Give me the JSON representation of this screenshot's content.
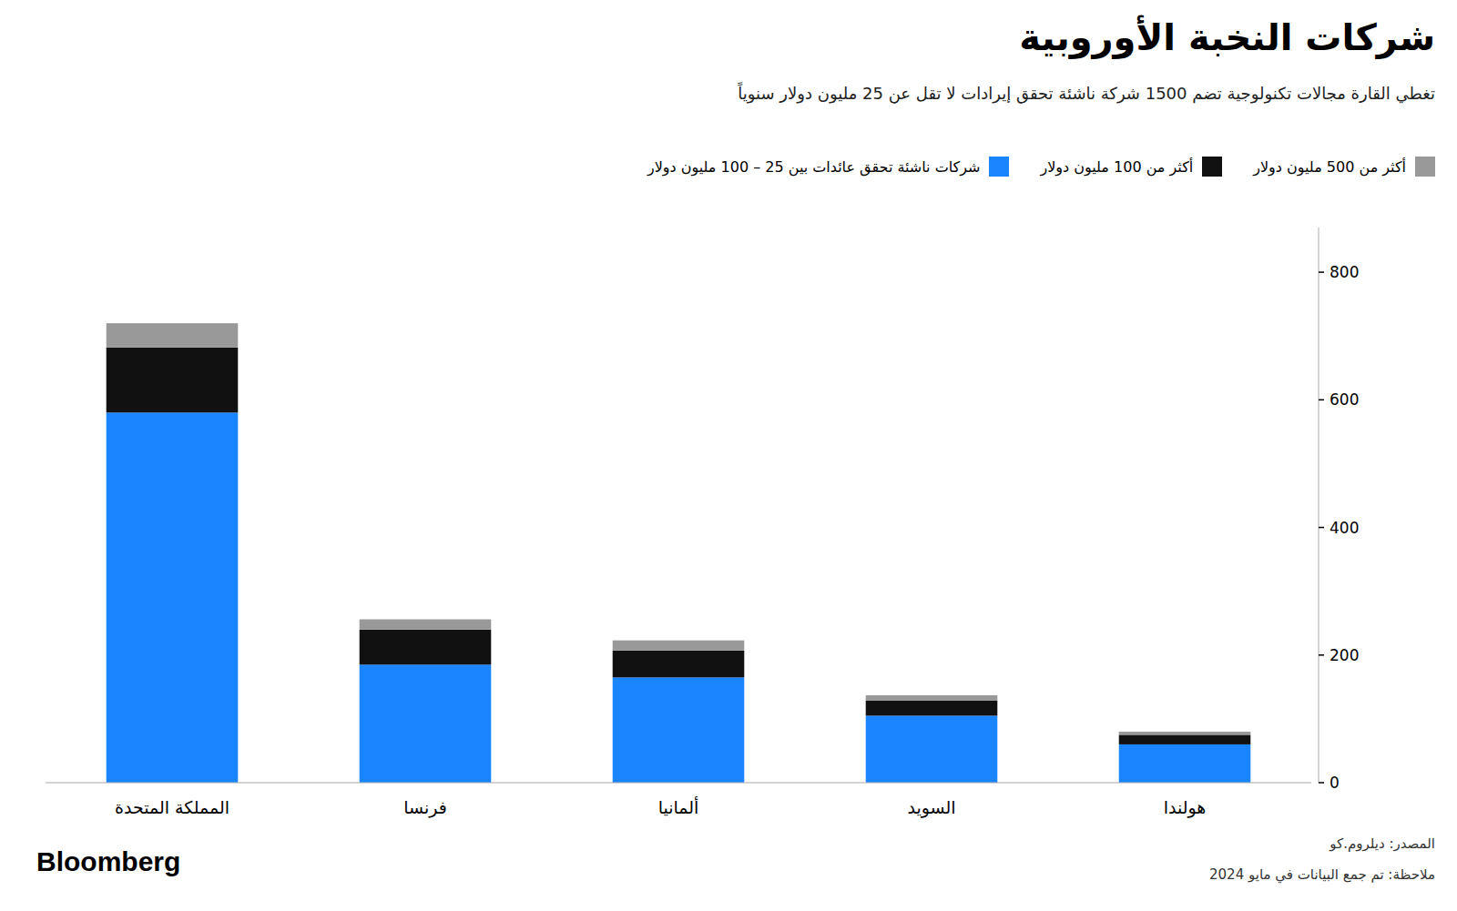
{
  "chart_data": {
    "type": "bar",
    "stacked": true,
    "title": "شركات النخبة الأوروبية",
    "subtitle": "تغطي القارة مجالات تكنولوجية تضم 1500 شركة ناشئة تحقق إيرادات لا تقل عن 25 مليون دولار سنوياً",
    "categories": [
      "المملكة المتحدة",
      "فرنسا",
      "ألمانيا",
      "السويد",
      "هولندا"
    ],
    "series": [
      {
        "name": "شركات ناشئة تحقق عائدات بين 25 – 100 مليون دولار",
        "color": "#1a85ff",
        "values": [
          580,
          185,
          165,
          105,
          60
        ]
      },
      {
        "name": "أكثر من 100 مليون دولار",
        "color": "#111111",
        "values": [
          102,
          55,
          42,
          24,
          15
        ]
      },
      {
        "name": "أكثر من 500 مليون دولار",
        "color": "#999999",
        "values": [
          38,
          16,
          16,
          8,
          5
        ]
      }
    ],
    "annotations": [
      "المصدر: ديلروم.كو",
      "ملاحظة: تم جمع البيانات في مايو 2024",
      "Bloomberg"
    ],
    "ylim": [
      0,
      870
    ],
    "yticks": [
      0,
      200,
      400,
      600,
      800
    ],
    "grid": false,
    "legend": "top-right"
  }
}
